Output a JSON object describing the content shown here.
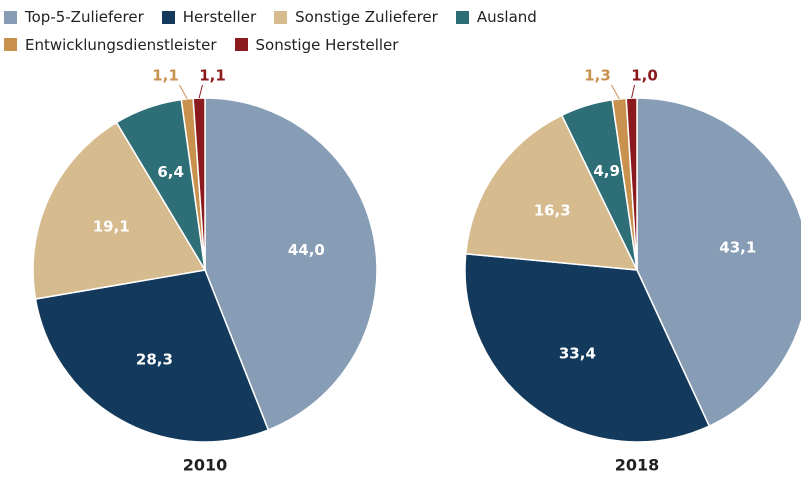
{
  "chart_data": [
    {
      "type": "pie",
      "title": "2010",
      "categories": [
        "Top-5-Zulieferer",
        "Hersteller",
        "Sonstige Zulieferer",
        "Ausland",
        "Entwicklungsdienstleister",
        "Sonstige Hersteller"
      ],
      "values": [
        44.0,
        28.3,
        19.1,
        6.4,
        1.1,
        1.1
      ],
      "value_labels": [
        "44,0",
        "28,3",
        "19,1",
        "6,4",
        "1,1",
        "1,1"
      ],
      "colors": [
        "#869db5",
        "#133a5c",
        "#d6bb8e",
        "#2e6e76",
        "#c8914e",
        "#8b1a1f"
      ]
    },
    {
      "type": "pie",
      "title": "2018",
      "categories": [
        "Top-5-Zulieferer",
        "Hersteller",
        "Sonstige Zulieferer",
        "Ausland",
        "Entwicklungsdienstleister",
        "Sonstige Hersteller"
      ],
      "values": [
        43.1,
        33.4,
        16.3,
        4.9,
        1.3,
        1.0
      ],
      "value_labels": [
        "43,1",
        "33,4",
        "16,3",
        "4,9",
        "1,3",
        "1,0"
      ],
      "colors": [
        "#869db5",
        "#133a5c",
        "#d6bb8e",
        "#2e6e76",
        "#c8914e",
        "#8b1a1f"
      ]
    }
  ]
}
